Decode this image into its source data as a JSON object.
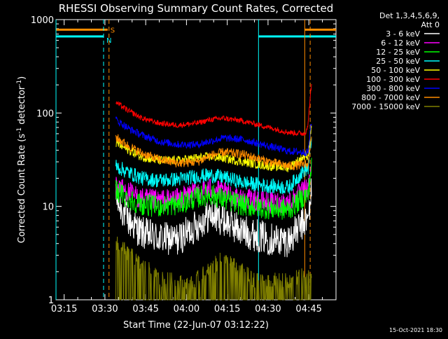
{
  "chart_data": {
    "type": "line",
    "title": "RHESSI Observing Summary Count Rates, Corrected",
    "xlabel": "Start Time (22-Jun-07 03:12:22)",
    "ylabel_main": "Corrected Count Rate (s",
    "ylabel_sup1": "-1",
    "ylabel_mid": " detector",
    "ylabel_sup2": "-1",
    "ylabel_end": ")",
    "footer_timestamp": "15-Oct-2021 18:30",
    "yscale": "log",
    "ylim": [
      1,
      1000
    ],
    "xlim_minutes": [
      192.0,
      295.0
    ],
    "x_ticks": [
      {
        "minute": 195,
        "label": "03:15"
      },
      {
        "minute": 210,
        "label": "03:30"
      },
      {
        "minute": 225,
        "label": "03:45"
      },
      {
        "minute": 240,
        "label": "04:00"
      },
      {
        "minute": 255,
        "label": "04:15"
      },
      {
        "minute": 270,
        "label": "04:30"
      },
      {
        "minute": 285,
        "label": "04:45"
      }
    ],
    "y_ticks": [
      {
        "value": 1,
        "label": "1"
      },
      {
        "value": 10,
        "label": "10"
      },
      {
        "value": 100,
        "label": "100"
      },
      {
        "value": 1000,
        "label": "1000"
      }
    ],
    "legend": {
      "header_line1": "Det 1,3,4,5,6,9,",
      "header_line2": "Att 0",
      "placement": "right"
    },
    "series": [
      {
        "name": "3 - 6 keV",
        "color": "#ffffff",
        "keypoints": [
          [
            236,
            12
          ],
          [
            228,
            7
          ],
          [
            220,
            5.2
          ],
          [
            210,
            4.6
          ],
          [
            198,
            4.4
          ],
          [
            186,
            6.3
          ],
          [
            178,
            8.2
          ],
          [
            170,
            7.2
          ],
          [
            158,
            5.4
          ],
          [
            142,
            4.5
          ],
          [
            130,
            4.3
          ],
          [
            120,
            7
          ]
        ],
        "noise": 0.18,
        "style": "noisy"
      },
      {
        "name": "6 - 12 keV",
        "color": "#ff00ff",
        "keypoints": [
          [
            236,
            17
          ],
          [
            228,
            14
          ],
          [
            220,
            12
          ],
          [
            210,
            11.5
          ],
          [
            198,
            12
          ],
          [
            186,
            14.5
          ],
          [
            178,
            15.5
          ],
          [
            170,
            14
          ],
          [
            158,
            12
          ],
          [
            142,
            11
          ],
          [
            130,
            11
          ],
          [
            120,
            15
          ]
        ],
        "noise": 0.12,
        "style": "noisy"
      },
      {
        "name": "12 - 25 keV",
        "color": "#00ff00",
        "keypoints": [
          [
            236,
            15
          ],
          [
            228,
            12
          ],
          [
            220,
            10.5
          ],
          [
            210,
            10
          ],
          [
            198,
            10.5
          ],
          [
            186,
            12.5
          ],
          [
            178,
            13.5
          ],
          [
            170,
            12
          ],
          [
            158,
            10.3
          ],
          [
            142,
            9.5
          ],
          [
            130,
            9.2
          ],
          [
            120,
            13
          ]
        ],
        "noise": 0.12,
        "style": "noisy"
      },
      {
        "name": "25 - 50 keV",
        "color": "#00ffff",
        "keypoints": [
          [
            236,
            27
          ],
          [
            228,
            23
          ],
          [
            220,
            20
          ],
          [
            210,
            19
          ],
          [
            198,
            19.5
          ],
          [
            186,
            21
          ],
          [
            178,
            21.5
          ],
          [
            170,
            20.5
          ],
          [
            158,
            18
          ],
          [
            142,
            16.5
          ],
          [
            130,
            16
          ],
          [
            120,
            25
          ]
        ],
        "noise": 0.08,
        "style": "noisy"
      },
      {
        "name": "50 - 100 keV",
        "color": "#ffff00",
        "keypoints": [
          [
            236,
            48
          ],
          [
            228,
            40
          ],
          [
            220,
            34
          ],
          [
            210,
            31
          ],
          [
            198,
            31
          ],
          [
            186,
            33
          ],
          [
            178,
            34
          ],
          [
            170,
            33
          ],
          [
            158,
            30
          ],
          [
            142,
            27
          ],
          [
            130,
            26
          ],
          [
            120,
            35
          ]
        ],
        "noise": 0.05,
        "style": "noisy"
      },
      {
        "name": "100 - 300 keV",
        "color": "#ff0000",
        "keypoints": [
          [
            236,
            130
          ],
          [
            228,
            105
          ],
          [
            220,
            88
          ],
          [
            210,
            78
          ],
          [
            198,
            74
          ],
          [
            186,
            78
          ],
          [
            178,
            85
          ],
          [
            170,
            88
          ],
          [
            158,
            82
          ],
          [
            142,
            70
          ],
          [
            130,
            62
          ],
          [
            120,
            60
          ],
          [
            116,
            100
          ]
        ],
        "noise": 0.03,
        "style": "noisy"
      },
      {
        "name": "300 - 800 keV",
        "color": "#0000ff",
        "keypoints": [
          [
            236,
            85
          ],
          [
            228,
            68
          ],
          [
            220,
            58
          ],
          [
            210,
            50
          ],
          [
            198,
            46
          ],
          [
            186,
            46
          ],
          [
            178,
            50
          ],
          [
            170,
            54
          ],
          [
            158,
            52
          ],
          [
            142,
            44
          ],
          [
            130,
            39
          ],
          [
            120,
            38
          ]
        ],
        "noise": 0.04,
        "style": "noisy"
      },
      {
        "name": "800 - 7000 keV",
        "color": "#ff8c00",
        "keypoints": [
          [
            236,
            55
          ],
          [
            228,
            44
          ],
          [
            220,
            37
          ],
          [
            210,
            32
          ],
          [
            198,
            29
          ],
          [
            186,
            30
          ],
          [
            178,
            35
          ],
          [
            170,
            38
          ],
          [
            158,
            36
          ],
          [
            142,
            30
          ],
          [
            130,
            27
          ],
          [
            120,
            28
          ]
        ],
        "noise": 0.05,
        "style": "noisy"
      },
      {
        "name": "7000 - 15000 keV",
        "color": "#808000",
        "keypoints": [
          [
            236,
            3.3
          ],
          [
            210,
            1.4
          ],
          [
            190,
            1.2
          ],
          [
            170,
            2.3
          ],
          [
            150,
            1.3
          ],
          [
            130,
            1.3
          ],
          [
            120,
            1.5
          ]
        ],
        "noise": 0.7,
        "style": "spiky"
      }
    ],
    "flag_segments": [
      {
        "label": "S",
        "color": "#ff8c00",
        "y_value": 780,
        "segments": [
          [
            192.0,
            211.0
          ],
          [
            283.5,
            295.0
          ]
        ]
      },
      {
        "label": "N",
        "color": "#00ffff",
        "y_value": 660,
        "segments": [
          [
            192.0,
            209.5
          ],
          [
            266.5,
            295.0
          ]
        ]
      }
    ],
    "vertical_lines": [
      {
        "minute": 192.0,
        "color": "#00ffff",
        "style": "solid"
      },
      {
        "minute": 209.5,
        "color": "#00ffff",
        "style": "dashed"
      },
      {
        "minute": 211.5,
        "color": "#ff8c00",
        "style": "dashed"
      },
      {
        "minute": 266.5,
        "color": "#00ffff",
        "style": "solid"
      },
      {
        "minute": 283.5,
        "color": "#ff8c00",
        "style": "solid"
      },
      {
        "minute": 285.5,
        "color": "#ff8c00",
        "style": "dashed"
      }
    ]
  }
}
